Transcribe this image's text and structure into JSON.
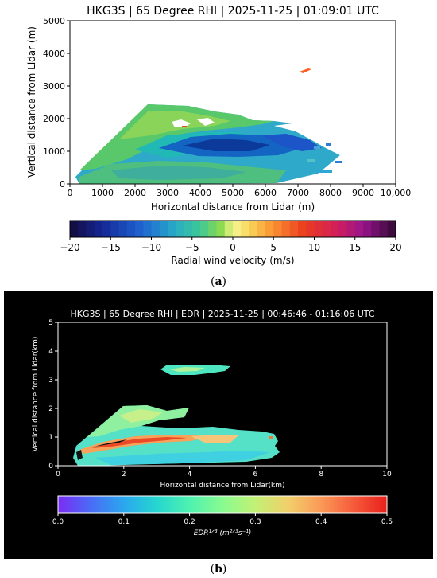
{
  "panels": [
    {
      "label_open": "(",
      "label_letter": "a",
      "label_close": ")",
      "chart_data": {
        "type": "heatmap",
        "title": "HKG3S | 65 Degree RHI | 2025-11-25 | 01:09:01 UTC",
        "xlabel": "Horizontal distance from Lidar (m)",
        "ylabel": "Vertical distance from Lidar (m)",
        "xlim": [
          0,
          10000
        ],
        "ylim": [
          0,
          5000
        ],
        "xticks": [
          "0",
          "1000",
          "2000",
          "3000",
          "4000",
          "5000",
          "6000",
          "7000",
          "8000",
          "9000",
          "10,000"
        ],
        "yticks": [
          "0",
          "1000",
          "2000",
          "3000",
          "4000",
          "5000"
        ],
        "colorbar": {
          "label": "Radial wind velocity (m/s)",
          "range": [
            -20,
            20
          ],
          "ticks": [
            "−20",
            "−15",
            "−10",
            "−5",
            "0",
            "5",
            "10",
            "15",
            "20"
          ],
          "bins": 40
        },
        "background": "#ffffff"
      }
    },
    {
      "label_open": "(",
      "label_letter": "b",
      "label_close": ")",
      "chart_data": {
        "type": "heatmap",
        "title": "HKG3S | 65 Degree RHI | EDR | 2025-11-25 | 00:46:46 - 01:16:06 UTC",
        "xlabel": "Horizontal distance from Lidar(km)",
        "ylabel": "Vertical distance from Lidar(km)",
        "xlim": [
          0,
          10
        ],
        "ylim": [
          0,
          5
        ],
        "xticks": [
          "0",
          "2",
          "4",
          "6",
          "8",
          "10"
        ],
        "yticks": [
          "0",
          "1",
          "2",
          "3",
          "4",
          "5"
        ],
        "colorbar": {
          "label": "EDR¹ᐟ³ (m²ᐟ³s⁻¹)",
          "range": [
            0,
            0.5
          ],
          "ticks": [
            "0.0",
            "0.1",
            "0.2",
            "0.3",
            "0.4",
            "0.5"
          ]
        },
        "background": "#000000"
      }
    }
  ]
}
